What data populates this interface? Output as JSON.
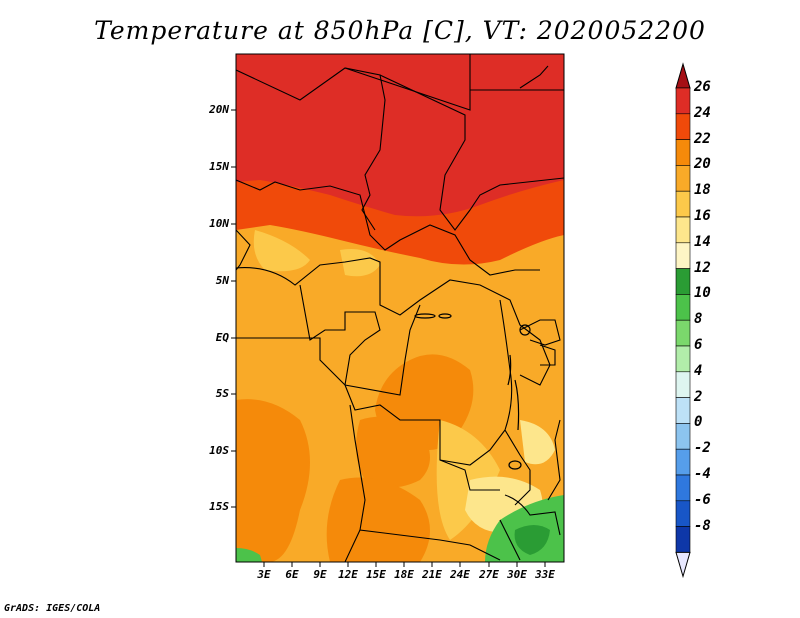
{
  "title": "Temperature at 850hPa [C], VT: 2020052200",
  "footer": "GrADS: IGES/COLA",
  "map": {
    "lat_labels": [
      "20N",
      "15N",
      "10N",
      "5N",
      "EQ",
      "5S",
      "10S",
      "15S"
    ],
    "lon_labels": [
      "3E",
      "6E",
      "9E",
      "12E",
      "15E",
      "18E",
      "21E",
      "24E",
      "27E",
      "30E",
      "33E"
    ]
  },
  "colorbar": {
    "labels": [
      "26",
      "24",
      "22",
      "20",
      "18",
      "16",
      "14",
      "12",
      "10",
      "8",
      "6",
      "4",
      "2",
      "0",
      "-2",
      "-4",
      "-6",
      "-8"
    ],
    "colors": [
      "#a50f15",
      "#de2d26",
      "#f04a0a",
      "#f58a0a",
      "#f9aa28",
      "#fcc94a",
      "#fde68c",
      "#fef5c5",
      "#2a9c34",
      "#4cc24a",
      "#7bd86c",
      "#b2edaa",
      "#def5f0",
      "#bde1f7",
      "#8cc4ef",
      "#569eea",
      "#2f78de",
      "#1856c7",
      "#0e37a8",
      "#081a72"
    ]
  }
}
